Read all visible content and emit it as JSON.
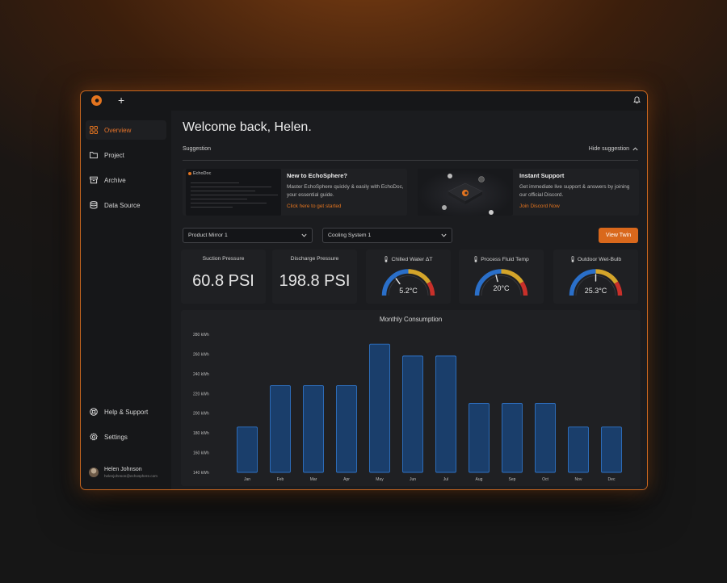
{
  "topbar": {
    "plus": "+"
  },
  "sidebar": {
    "items": [
      {
        "label": "Overview",
        "icon": "grid-icon",
        "active": true
      },
      {
        "label": "Project",
        "icon": "folder-icon"
      },
      {
        "label": "Archive",
        "icon": "archive-icon"
      },
      {
        "label": "Data Source",
        "icon": "database-icon"
      }
    ],
    "bottom_items": [
      {
        "label": "Help & Support",
        "icon": "lifebuoy-icon"
      },
      {
        "label": "Settings",
        "icon": "gear-icon"
      }
    ],
    "user": {
      "name": "Helen Johnson",
      "email": "helenjohnson@echosphere.com"
    }
  },
  "main": {
    "welcome": "Welcome back, Helen.",
    "suggestion_label": "Suggestion",
    "hide_suggestion": "Hide suggestion",
    "echodoc_card": {
      "thumb_title": "EchoDoc",
      "title": "New to EchoSphere?",
      "description": "Master EchoSphere quickly & easily with EchoDoc, your essential guide.",
      "link": "Click here to get started"
    },
    "support_card": {
      "title": "Instant Support",
      "description": "Get immediate live support & answers by joining our official Discord.",
      "link": "Join Discord Now"
    },
    "selects": {
      "product": "Product Mirror 1",
      "system": "Cooling System 1"
    },
    "view_button": "View Twin",
    "metrics": [
      {
        "label": "Suction Pressure",
        "value": "60.8 PSI"
      },
      {
        "label": "Discharge Pressure",
        "value": "198.8 PSI"
      }
    ],
    "gauges": [
      {
        "label": "Chilled Water ΔT",
        "value": "5.2°C",
        "level": 0.3
      },
      {
        "label": "Process Fluid Temp",
        "value": "20°C",
        "level": 0.42
      },
      {
        "label": "Outdoor Wet-Bulb",
        "value": "25.3°C",
        "level": 0.5
      }
    ],
    "colors": {
      "accent": "#e3741f",
      "bar_fill": "#1a3e6b",
      "bar_stroke": "#2f72c4",
      "gauge_blue": "#2a6fc9",
      "gauge_yellow": "#d4a52a",
      "gauge_red": "#c8302a"
    }
  },
  "chart_data": {
    "type": "bar",
    "title": "Monthly Consumption",
    "categories": [
      "Jan",
      "Feb",
      "Mar",
      "Apr",
      "May",
      "Jun",
      "Jul",
      "Aug",
      "Sep",
      "Oct",
      "Nov",
      "Dec"
    ],
    "values": [
      186,
      228,
      228,
      228,
      270,
      258,
      258,
      210,
      210,
      210,
      186,
      186
    ],
    "ylim": [
      140,
      280
    ],
    "yticks": [
      140,
      160,
      180,
      200,
      220,
      240,
      260,
      280
    ],
    "ytick_labels": [
      "140 kWh",
      "160 kWh",
      "180 kWh",
      "200 kWh",
      "220 kWh",
      "240 kWh",
      "260 kWh",
      "280 kWh"
    ],
    "grid": false
  }
}
